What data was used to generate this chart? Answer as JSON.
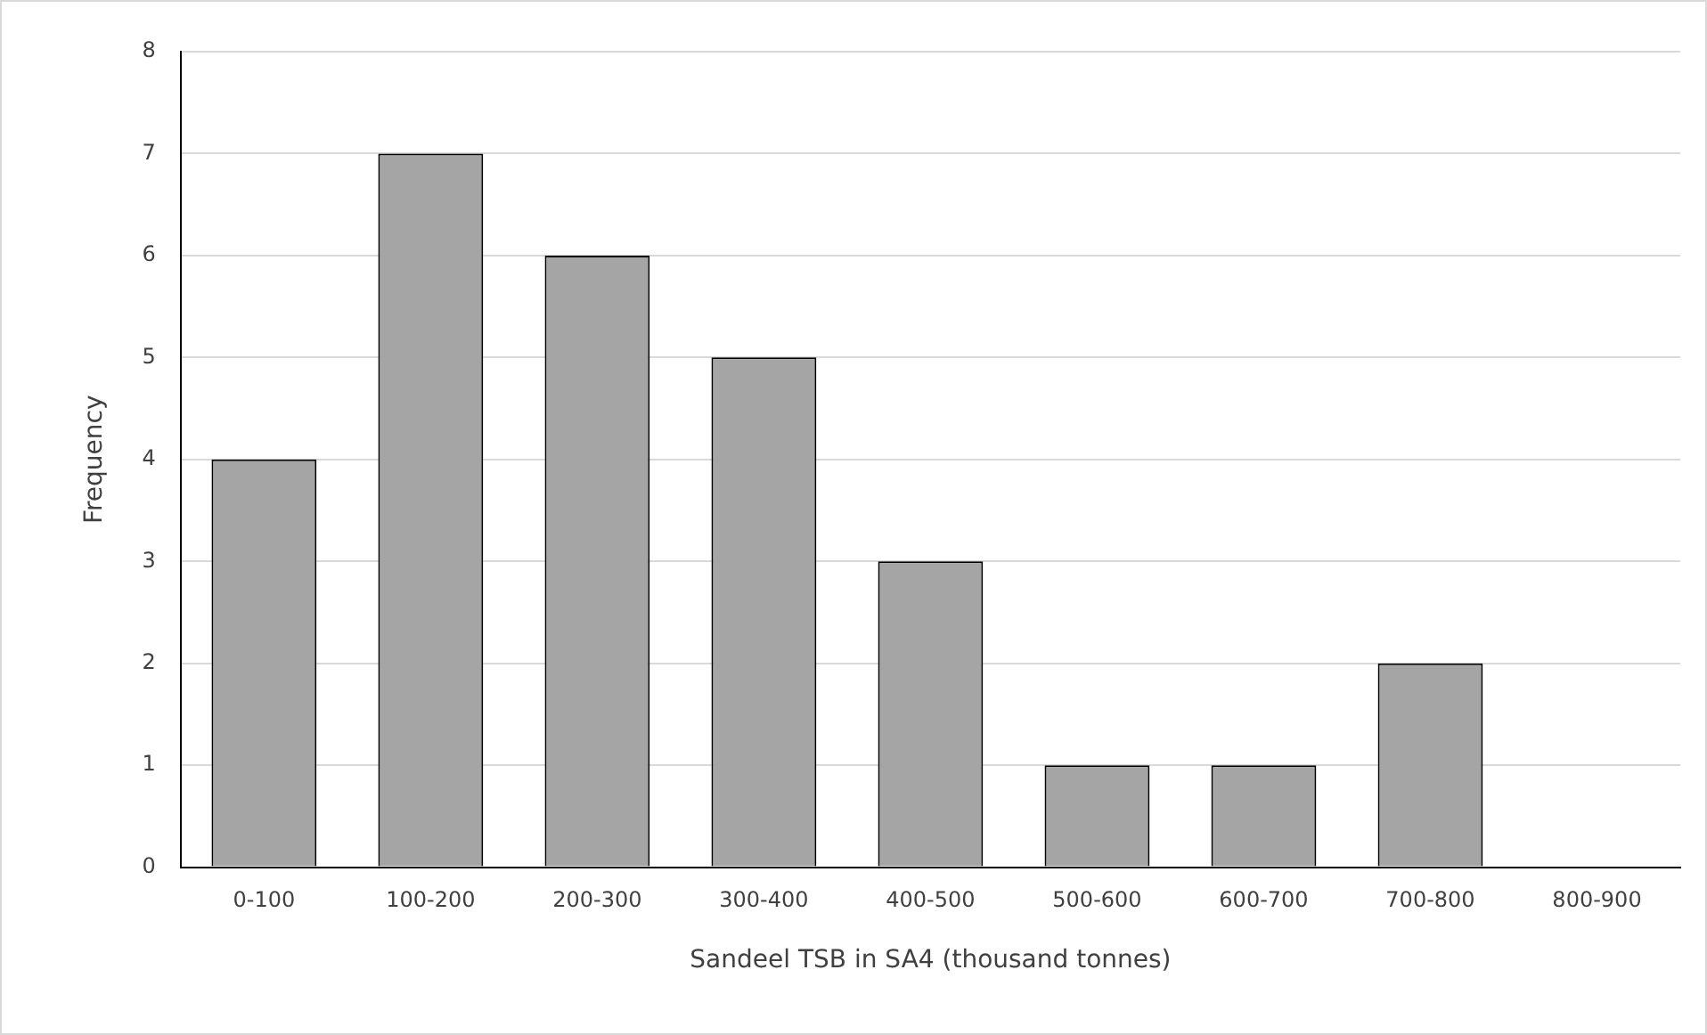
{
  "chart_data": {
    "type": "bar",
    "xlabel": "Sandeel TSB in SA4 (thousand tonnes)",
    "ylabel": "Frequency",
    "categories": [
      "0-100",
      "100-200",
      "200-300",
      "300-400",
      "400-500",
      "500-600",
      "600-700",
      "700-800",
      "800-900"
    ],
    "values": [
      4,
      7,
      6,
      5,
      3,
      1,
      1,
      2,
      0
    ],
    "color": "#a5a5a5",
    "ylim": [
      0,
      8
    ],
    "yticks": [
      0,
      1,
      2,
      3,
      4,
      5,
      6,
      7,
      8
    ],
    "grid": "y",
    "legend": false
  }
}
